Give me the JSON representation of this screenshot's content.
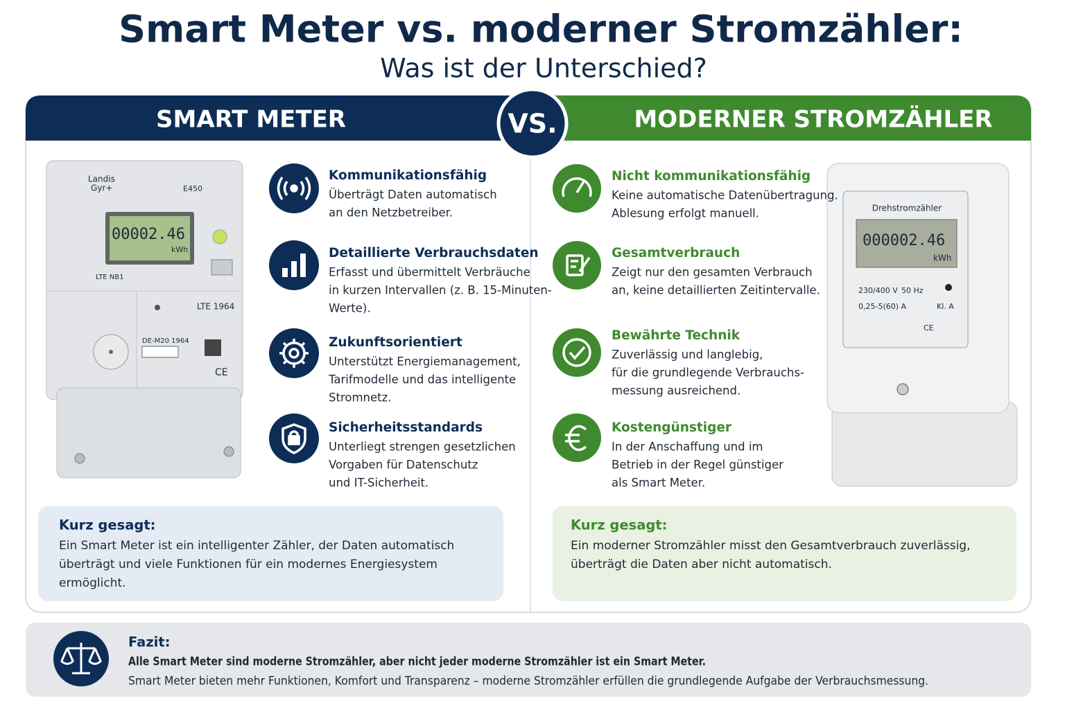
{
  "header": {
    "title": "Smart Meter vs. moderner Stromzähler:",
    "subtitle": "Was ist der Unterschied?"
  },
  "vs": "VS.",
  "left": {
    "heading": "SMART METER",
    "meter": {
      "brand": [
        "Landis",
        "Gyr+"
      ],
      "model": "E450",
      "display": "00002.46",
      "unit": "kWh",
      "label": "LTE NB1",
      "label2": "LTE 1964",
      "id": "DE-M20 1964",
      "mark": "CE"
    },
    "features": [
      {
        "title": "Kommunikationsfähig",
        "lines": [
          "Überträgt Daten automatisch",
          "an den Netzbetreiber."
        ]
      },
      {
        "title": "Detaillierte Verbrauchsdaten",
        "lines": [
          "Erfasst und übermittelt Verbräuche",
          "in kurzen Intervallen (z. B. 15-Minuten-",
          "Werte)."
        ]
      },
      {
        "title": "Zukunftsorientiert",
        "lines": [
          "Unterstützt Energiemanagement,",
          "Tarifmodelle und das intelligente",
          "Stromnetz."
        ]
      },
      {
        "title": "Sicherheitsstandards",
        "lines": [
          "Unterliegt strengen gesetzlichen",
          "Vorgaben für Datenschutz",
          "und IT-Sicherheit."
        ]
      }
    ],
    "summary": {
      "title": "Kurz gesagt:",
      "lines": [
        "Ein Smart Meter ist ein intelligenter Zähler, der Daten automatisch",
        "überträgt und viele Funktionen für ein modernes Energiesystem",
        "ermöglicht."
      ]
    }
  },
  "right": {
    "heading": "MODERNER STROMZÄHLER",
    "meter": {
      "name": "Drehstromzähler",
      "display": "000002.46",
      "unit": "kWh",
      "voltage": "230/400 V",
      "frequency": "50 Hz",
      "current": "0,25-5(60) A",
      "class": "Kl. A",
      "mark": "CE"
    },
    "features": [
      {
        "title": "Nicht kommunikationsfähig",
        "lines": [
          "Keine automatische Datenübertragung.",
          "Ablesung erfolgt manuell."
        ]
      },
      {
        "title": "Gesamtverbrauch",
        "lines": [
          "Zeigt nur den gesamten Verbrauch",
          "an, keine detaillierten Zeitintervalle."
        ]
      },
      {
        "title": "Bewährte Technik",
        "lines": [
          "Zuverlässig und langlebig,",
          "für die grundlegende Verbrauchs-",
          "messung ausreichend."
        ]
      },
      {
        "title": "Kostengünstiger",
        "lines": [
          "In der Anschaffung und im",
          "Betrieb in der Regel günstiger",
          "als Smart Meter."
        ]
      }
    ],
    "summary": {
      "title": "Kurz gesagt:",
      "lines": [
        "Ein moderner Stromzähler misst den Gesamtverbrauch zuverlässig,",
        "überträgt die Daten aber nicht automatisch."
      ]
    }
  },
  "conclusion": {
    "title": "Fazit:",
    "lines": [
      "Alle Smart Meter sind moderne Stromzähler, aber nicht jeder moderne Stromzähler ist ein Smart Meter.",
      "Smart Meter bieten mehr Funktionen, Komfort und Transparenz – moderne Stromzähler erfüllen die grundlegende Aufgabe der Verbrauchsmessung."
    ]
  }
}
